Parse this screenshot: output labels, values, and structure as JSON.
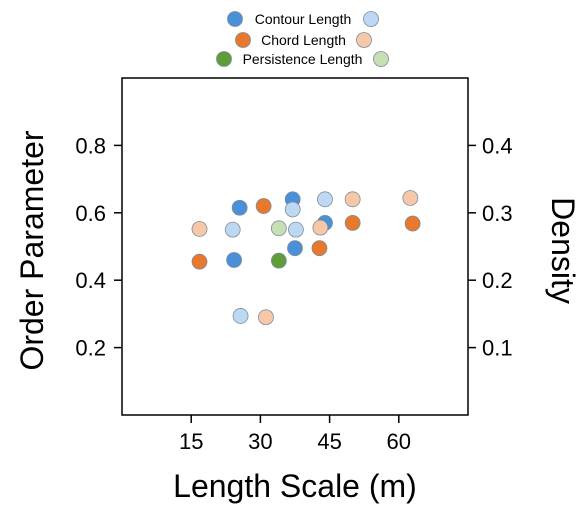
{
  "chart_data": {
    "type": "scatter",
    "xlabel": "Length Scale (m)",
    "ylabel": "Order Parameter",
    "y2label": "Density",
    "xlim": [
      0,
      75
    ],
    "ylim": [
      0,
      1.0
    ],
    "y2lim": [
      0,
      0.5
    ],
    "xticks": [
      15,
      30,
      45,
      60
    ],
    "xtick_labels": [
      "15",
      "30",
      "45",
      "60"
    ],
    "yticks": [
      0.2,
      0.4,
      0.6,
      0.8
    ],
    "ytick_labels": [
      "0.2",
      "0.4",
      "0.6",
      "0.8"
    ],
    "y2ticks": [
      0.1,
      0.2,
      0.3,
      0.4
    ],
    "y2tick_labels": [
      "0.1",
      "0.2",
      "0.3",
      "0.4"
    ],
    "grid": false,
    "legend_position": "top-center",
    "series": [
      {
        "name": "Contour Length",
        "axis": "left",
        "color": "#4a90d9",
        "points": [
          [
            24.3,
            0.46
          ],
          [
            25.5,
            0.615
          ],
          [
            37.0,
            0.64
          ],
          [
            37.5,
            0.495
          ],
          [
            44.0,
            0.57
          ]
        ]
      },
      {
        "name": "Contour Length",
        "axis": "right",
        "color": "#bcd8f2",
        "points": [
          [
            24.0,
            0.275
          ],
          [
            25.7,
            0.147
          ],
          [
            37.0,
            0.305
          ],
          [
            37.7,
            0.275
          ],
          [
            44.0,
            0.32
          ]
        ]
      },
      {
        "name": "Chord Length",
        "axis": "left",
        "color": "#e8782c",
        "points": [
          [
            16.8,
            0.455
          ],
          [
            30.7,
            0.62
          ],
          [
            42.8,
            0.495
          ],
          [
            50.0,
            0.57
          ],
          [
            63.0,
            0.568
          ]
        ]
      },
      {
        "name": "Chord Length",
        "axis": "right",
        "color": "#f7c8a8",
        "points": [
          [
            16.8,
            0.276
          ],
          [
            31.2,
            0.145
          ],
          [
            43.0,
            0.278
          ],
          [
            50.0,
            0.32
          ],
          [
            62.5,
            0.322
          ]
        ]
      },
      {
        "name": "Persistence Length",
        "axis": "left",
        "color": "#5e9e3a",
        "points": [
          [
            34.0,
            0.458
          ]
        ]
      },
      {
        "name": "Persistence Length",
        "axis": "right",
        "color": "#c6e0b4",
        "points": [
          [
            34.0,
            0.277
          ]
        ]
      }
    ]
  },
  "legend": [
    {
      "label": "Contour Length",
      "color_left": "#4a90d9",
      "color_right": "#bcd8f2"
    },
    {
      "label": "Chord Length",
      "color_left": "#e8782c",
      "color_right": "#f7c8a8"
    },
    {
      "label": "Persistence Length",
      "color_left": "#5e9e3a",
      "color_right": "#c6e0b4"
    }
  ]
}
